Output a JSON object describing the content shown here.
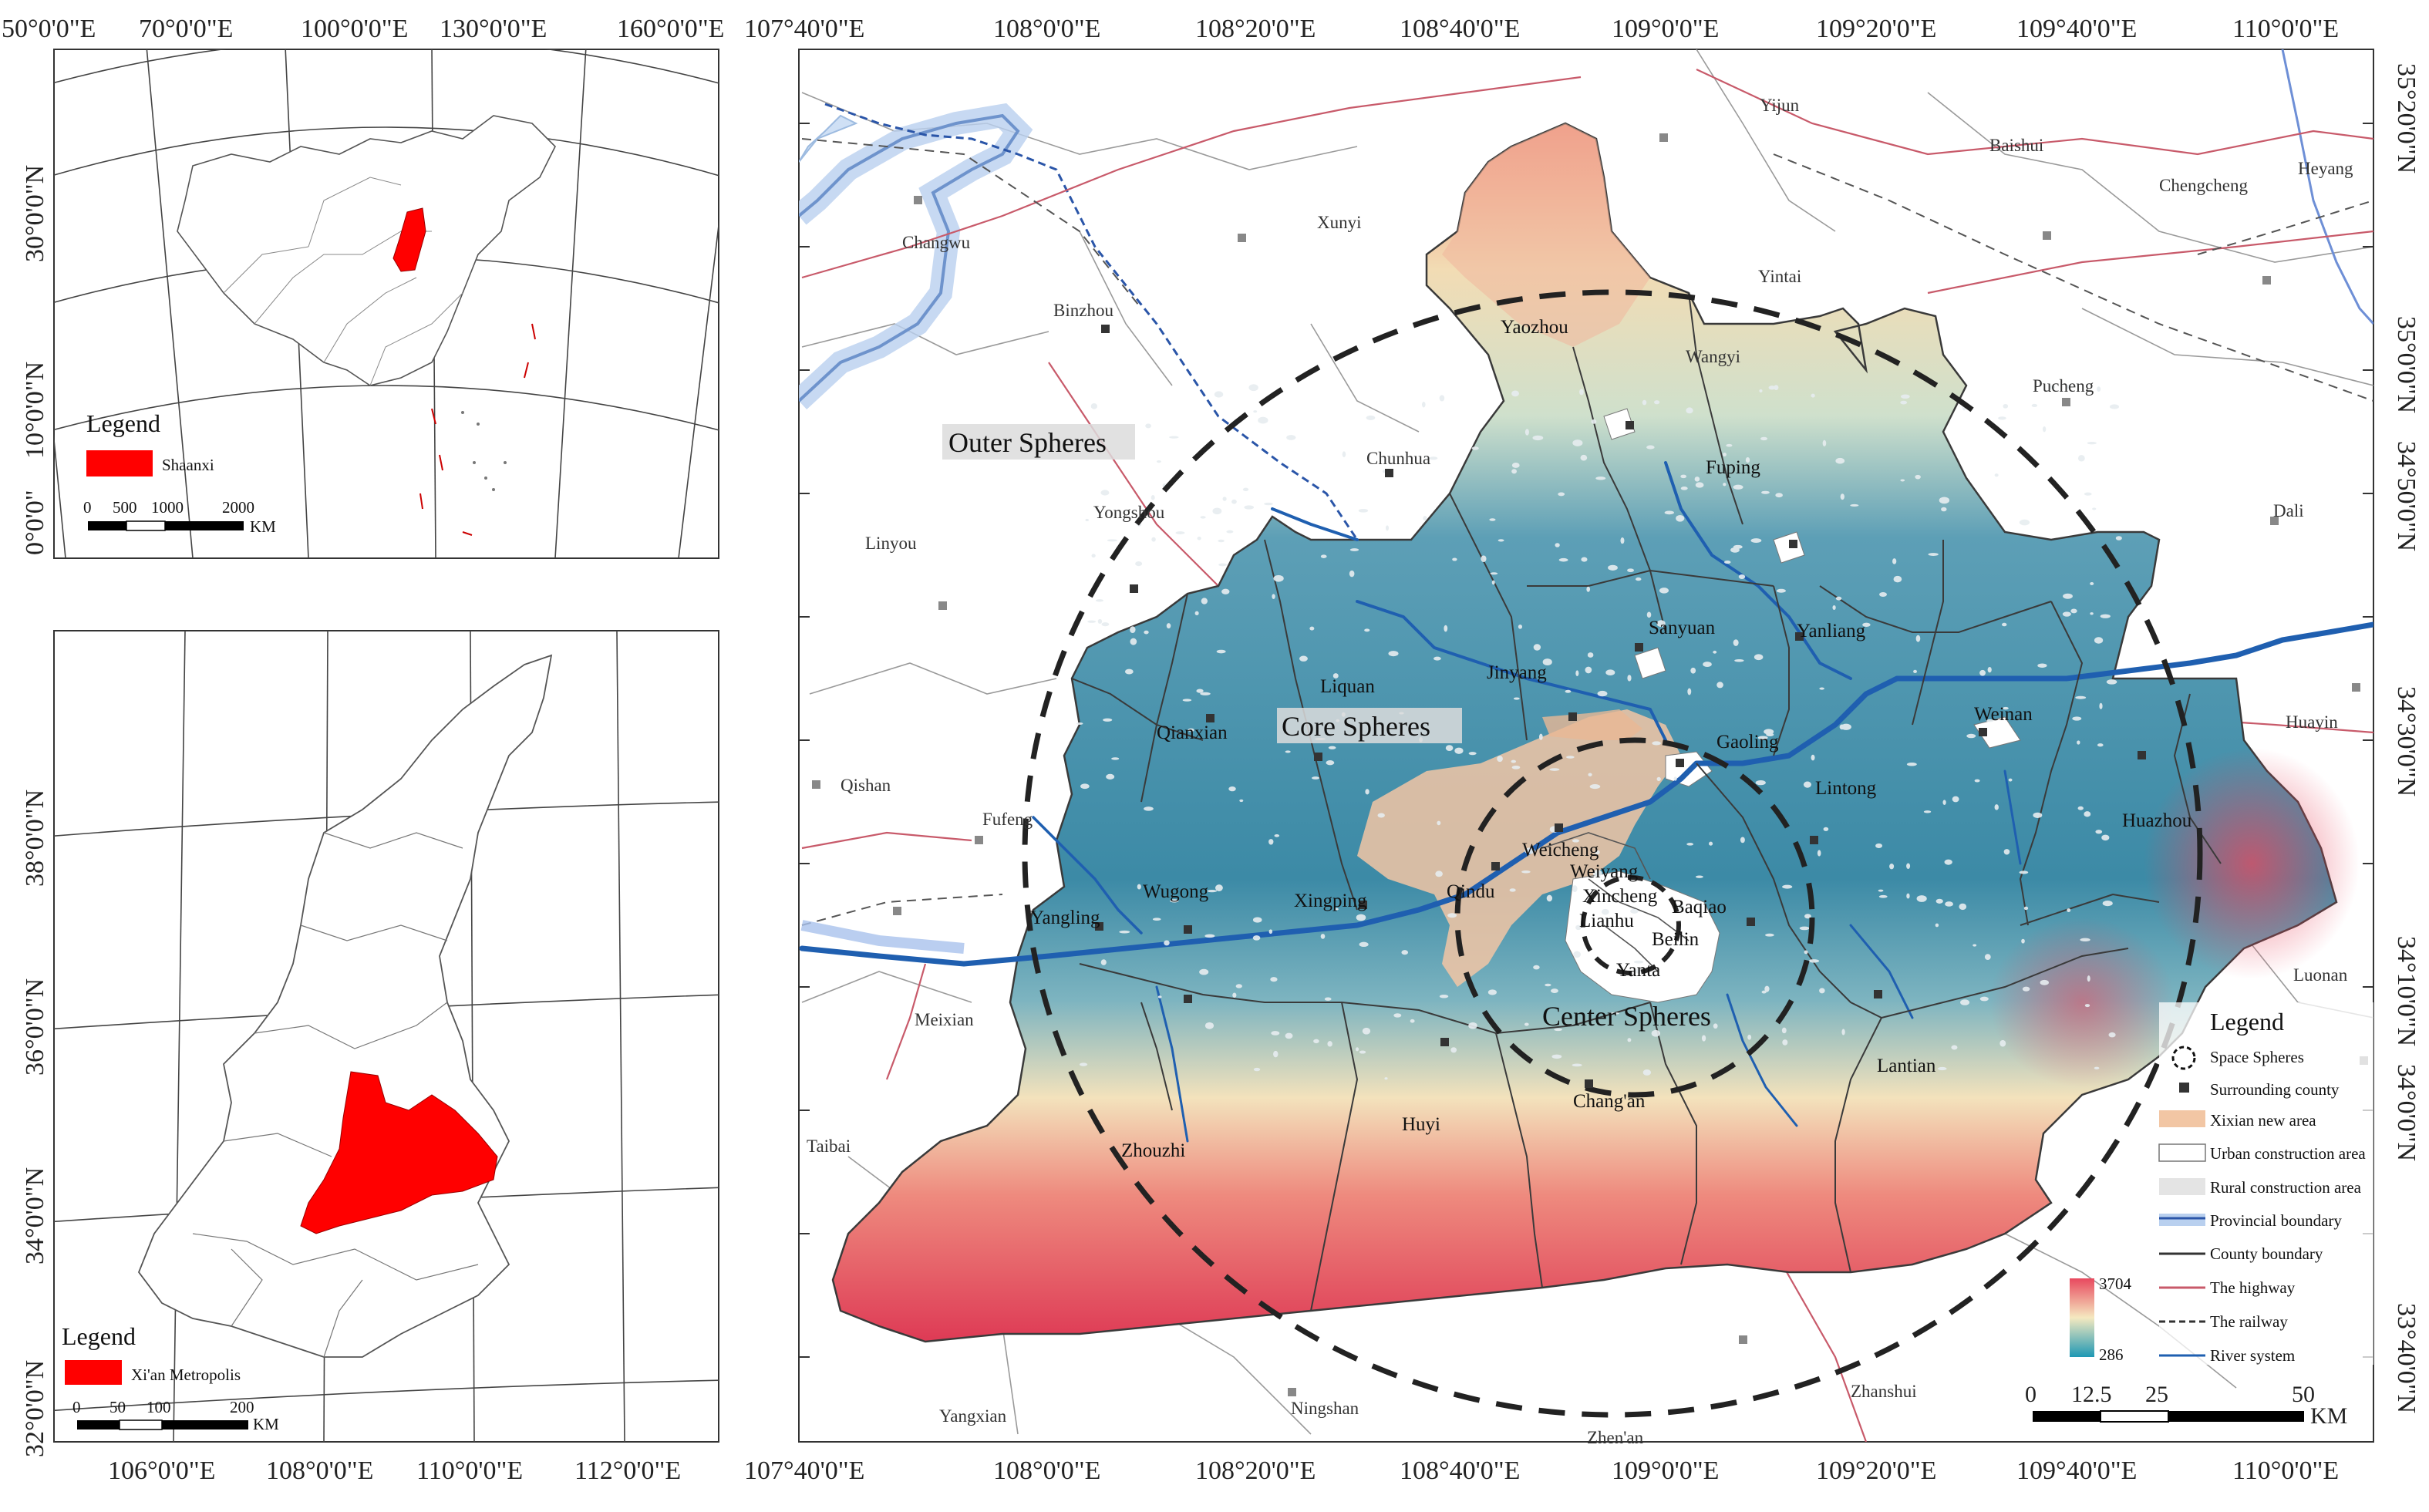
{
  "inset_country": {
    "lon_labels": [
      "50°0'0\"E",
      "70°0'0\"E",
      "100°0'0\"E",
      "130°0'0\"E",
      "160°0'0\"E"
    ],
    "lat_labels": [
      "30°0'0\"N",
      "10°0'0\"N",
      "0°0'0\""
    ],
    "legend_title": "Legend",
    "legend_item": "Shaanxi",
    "scale_labels": [
      "0",
      "500",
      "1000",
      "2000"
    ],
    "scale_unit": "KM"
  },
  "inset_province": {
    "lon_labels": [
      "106°0'0\"E",
      "108°0'0\"E",
      "110°0'0\"E",
      "112°0'0\"E"
    ],
    "lat_labels": [
      "38°0'0\"N",
      "36°0'0\"N",
      "34°0'0\"N",
      "32°0'0\"N"
    ],
    "legend_title": "Legend",
    "legend_item": "Xi'an Metropolis",
    "scale_labels": [
      "0",
      "50",
      "100",
      "200"
    ],
    "scale_unit": "KM"
  },
  "main_map": {
    "lon_labels": [
      "107°40'0\"E",
      "108°0'0\"E",
      "108°20'0\"E",
      "108°40'0\"E",
      "109°0'0\"E",
      "109°20'0\"E",
      "109°40'0\"E",
      "110°0'0\"E"
    ],
    "lat_labels": [
      "35°20'0\"N",
      "35°0'0\"N",
      "34°50'0\"N",
      "34°30'0\"N",
      "34°10'0\"N",
      "34°0'0\"N",
      "33°40'0\"N"
    ],
    "sphere_labels": [
      "Outer Spheres",
      "Core Spheres",
      "Center Spheres"
    ],
    "places": [
      "Changwu",
      "Xunyi",
      "Yijun",
      "Baishui",
      "Heyang",
      "Chengcheng",
      "Binzhou",
      "Yaozhou",
      "Yintai",
      "Wangyi",
      "Pucheng",
      "Chunhua",
      "Fuping",
      "Yongshou",
      "Linyou",
      "Dali",
      "Sanyuan",
      "Yanliang",
      "Liquan",
      "Jinyang",
      "Qianxian",
      "Gaoling",
      "Weinan",
      "Huayin",
      "Qishan",
      "Fufeng",
      "Weicheng",
      "Lintong",
      "Huazhou",
      "Weiyang",
      "Xincheng",
      "Yangling",
      "Wugong",
      "Xingping",
      "Qindu",
      "Lianhu",
      "Baqiao",
      "Beilin",
      "Yanta",
      "Meixian",
      "Luonan",
      "Lantian",
      "Chang'an",
      "Huyi",
      "Zhouzhi",
      "Taibai",
      "Ningshan",
      "Yangxian",
      "Zhen'an",
      "Zhanshui"
    ],
    "legend_title": "Legend",
    "legend_items": [
      "Space Spheres",
      "Surrounding county",
      "Xixian new area",
      "Urban construction area",
      "Rural construction area",
      "Provincial boundary",
      "County  boundary",
      "The highway",
      "The railway",
      "River system"
    ],
    "elev_max": "3704",
    "elev_min": "286",
    "scale_labels": [
      "0",
      "12.5",
      "25",
      "50"
    ],
    "scale_unit": "KM"
  },
  "colors": {
    "shaanxi_fill": "#ff0000",
    "highway": "#c85a6a",
    "river": "#1f5fb0",
    "elev_high": "#e8485e",
    "elev_mid": "#f5e9c0",
    "elev_low": "#2a8fa8",
    "xixian": "#f2c6a4"
  }
}
